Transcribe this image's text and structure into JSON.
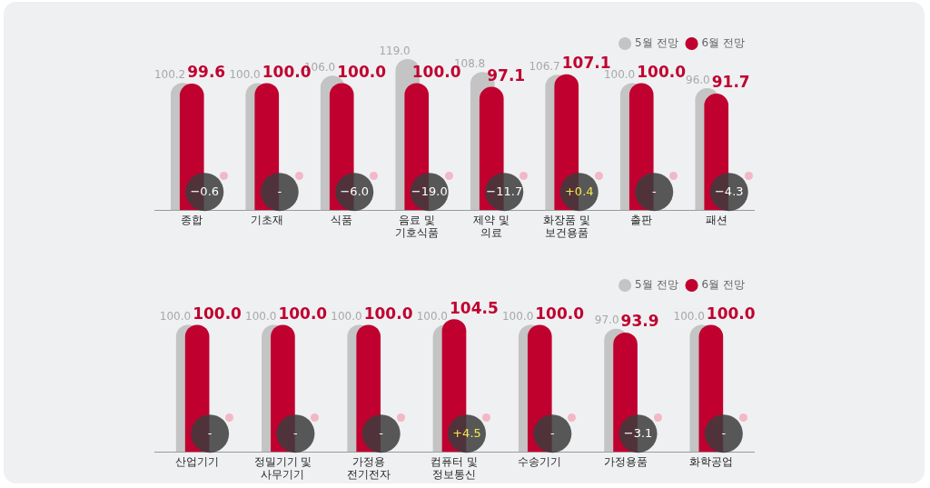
{
  "chart_data": [
    {
      "type": "bar",
      "categories": [
        "종합",
        "기초재",
        "식품",
        "음료 및 기호식품",
        "제약 및 의료",
        "화장품 및 보건용품",
        "출판",
        "패션"
      ],
      "series": [
        {
          "name": "5월 전망",
          "color": "#c4c4c4",
          "values": [
            100.2,
            100.0,
            106.0,
            119.0,
            108.8,
            106.7,
            100.0,
            96.0
          ],
          "value_labels": [
            "100.2",
            "100.0",
            "106.0",
            "119.0",
            "108.8",
            "106.7",
            "100.0",
            "96.0"
          ]
        },
        {
          "name": "6월 전망",
          "color": "#c0002f",
          "values": [
            99.6,
            100.0,
            100.0,
            100.0,
            97.1,
            107.1,
            100.0,
            91.7
          ],
          "value_labels": [
            "99.6",
            "100.0",
            "100.0",
            "100.0",
            "97.1",
            "107.1",
            "100.0",
            "91.7"
          ]
        }
      ],
      "tick_labels": "x",
      "grid": false,
      "legend": "top right",
      "annotations": [
        "−0.6",
        "-",
        "−6.0",
        "−19.0",
        "−11.7",
        "+0.4",
        "-",
        "−4.3"
      ]
    },
    {
      "type": "bar",
      "categories": [
        "산업기기",
        "정밀기기 및 사무기기",
        "가정용 전기전자",
        "컴퓨터 및 정보통신",
        "수송기기",
        "가정용품",
        "화학공업"
      ],
      "series": [
        {
          "name": "5월 전망",
          "color": "#c4c4c4",
          "values": [
            100.0,
            100.0,
            100.0,
            100.0,
            100.0,
            97.0,
            100.0
          ],
          "value_labels": [
            "100.0",
            "100.0",
            "100.0",
            "100.0",
            "100.0",
            "97.0",
            "100.0"
          ]
        },
        {
          "name": "6월 전망",
          "color": "#c0002f",
          "values": [
            100.0,
            100.0,
            100.0,
            104.5,
            100.0,
            93.9,
            100.0
          ],
          "value_labels": [
            "100.0",
            "100.0",
            "100.0",
            "104.5",
            "100.0",
            "93.9",
            "100.0"
          ]
        }
      ],
      "tick_labels": "x",
      "grid": false,
      "legend": "top right",
      "annotations": [
        "-",
        "-",
        "-",
        "+4.5",
        "-",
        "−3.1",
        "-"
      ]
    }
  ]
}
